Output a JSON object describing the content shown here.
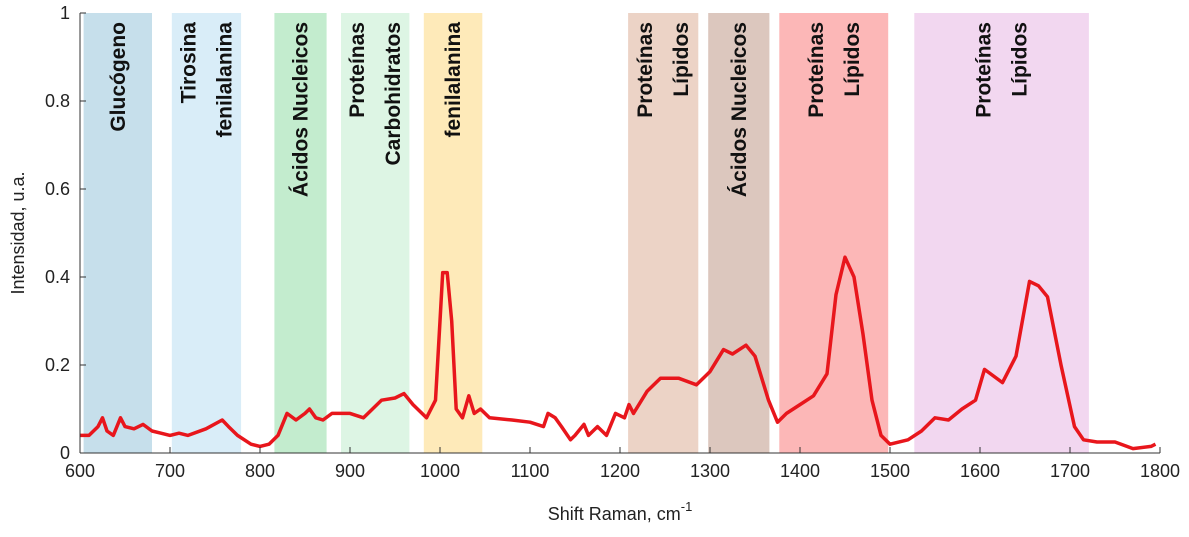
{
  "chart_data": {
    "type": "line",
    "xlabel": {
      "text": "Shift Raman, cm",
      "sup": "-1"
    },
    "ylabel": "Intensidad, u.a.",
    "xlim": [
      600,
      1800
    ],
    "xticks": [
      600,
      700,
      800,
      900,
      1000,
      1100,
      1200,
      1300,
      1400,
      1500,
      1600,
      1700,
      1800
    ],
    "ylim": [
      0,
      1
    ],
    "yticks": [
      0,
      0.2,
      0.4,
      0.6,
      0.8,
      1
    ],
    "bands": [
      {
        "label": [
          "Glucógeno"
        ],
        "xmin": 604,
        "xmax": 680,
        "color": "#c6dfeb"
      },
      {
        "label": [
          "Tirosina",
          "fenilalanina"
        ],
        "xmin": 702,
        "xmax": 779,
        "color": "#d9edf8"
      },
      {
        "label": [
          "Ácidos Nucleicos"
        ],
        "xmin": 816,
        "xmax": 874,
        "color": "#c3ecce"
      },
      {
        "label": [
          "Proteínas",
          "Carbohidratos"
        ],
        "xmin": 890,
        "xmax": 966,
        "color": "#ddf5e4"
      },
      {
        "label": [
          "fenilalanina"
        ],
        "xmin": 982,
        "xmax": 1047,
        "color": "#feeab9"
      },
      {
        "label": [
          "Proteínas",
          "Lípidos"
        ],
        "xmin": 1209,
        "xmax": 1287,
        "color": "#ecd3c6"
      },
      {
        "label": [
          "Ácidos Nucleicos"
        ],
        "xmin": 1298,
        "xmax": 1366,
        "color": "#dcc7be"
      },
      {
        "label": [
          "Proteínas",
          "Lípidos"
        ],
        "xmin": 1377,
        "xmax": 1498,
        "color": "#fcb7b7"
      },
      {
        "label": [
          "Proteínas",
          "Lípidos"
        ],
        "xmin": 1527,
        "xmax": 1721,
        "color": "#f2d7f0"
      }
    ],
    "series": [
      {
        "color": "#e8161c",
        "x": [
          600,
          610,
          620,
          625,
          630,
          637,
          645,
          650,
          660,
          670,
          680,
          690,
          700,
          710,
          720,
          740,
          758,
          765,
          775,
          790,
          800,
          810,
          820,
          830,
          840,
          850,
          855,
          862,
          870,
          880,
          900,
          915,
          925,
          935,
          950,
          960,
          970,
          985,
          995,
          1000,
          1003,
          1008,
          1013,
          1018,
          1025,
          1032,
          1038,
          1045,
          1055,
          1080,
          1100,
          1115,
          1120,
          1128,
          1135,
          1145,
          1150,
          1160,
          1165,
          1175,
          1185,
          1195,
          1205,
          1210,
          1215,
          1230,
          1245,
          1265,
          1285,
          1300,
          1315,
          1325,
          1340,
          1350,
          1365,
          1375,
          1385,
          1400,
          1415,
          1430,
          1440,
          1450,
          1460,
          1470,
          1480,
          1490,
          1500,
          1520,
          1535,
          1550,
          1565,
          1580,
          1595,
          1605,
          1615,
          1625,
          1640,
          1655,
          1665,
          1675,
          1690,
          1705,
          1715,
          1730,
          1750,
          1770,
          1790,
          1795
        ],
        "y": [
          0.04,
          0.04,
          0.06,
          0.08,
          0.05,
          0.04,
          0.08,
          0.06,
          0.055,
          0.065,
          0.05,
          0.045,
          0.04,
          0.045,
          0.04,
          0.055,
          0.075,
          0.06,
          0.04,
          0.02,
          0.015,
          0.02,
          0.04,
          0.09,
          0.075,
          0.09,
          0.1,
          0.08,
          0.075,
          0.09,
          0.09,
          0.08,
          0.1,
          0.12,
          0.125,
          0.135,
          0.11,
          0.08,
          0.12,
          0.3,
          0.41,
          0.41,
          0.3,
          0.1,
          0.08,
          0.13,
          0.09,
          0.1,
          0.08,
          0.075,
          0.07,
          0.06,
          0.09,
          0.08,
          0.06,
          0.03,
          0.04,
          0.065,
          0.04,
          0.06,
          0.04,
          0.09,
          0.08,
          0.11,
          0.09,
          0.14,
          0.17,
          0.17,
          0.155,
          0.185,
          0.235,
          0.225,
          0.245,
          0.22,
          0.12,
          0.07,
          0.09,
          0.11,
          0.13,
          0.18,
          0.36,
          0.445,
          0.4,
          0.27,
          0.12,
          0.04,
          0.02,
          0.03,
          0.05,
          0.08,
          0.075,
          0.1,
          0.12,
          0.19,
          0.175,
          0.16,
          0.22,
          0.39,
          0.38,
          0.355,
          0.2,
          0.06,
          0.03,
          0.025,
          0.025,
          0.01,
          0.015,
          0.02
        ]
      }
    ]
  }
}
